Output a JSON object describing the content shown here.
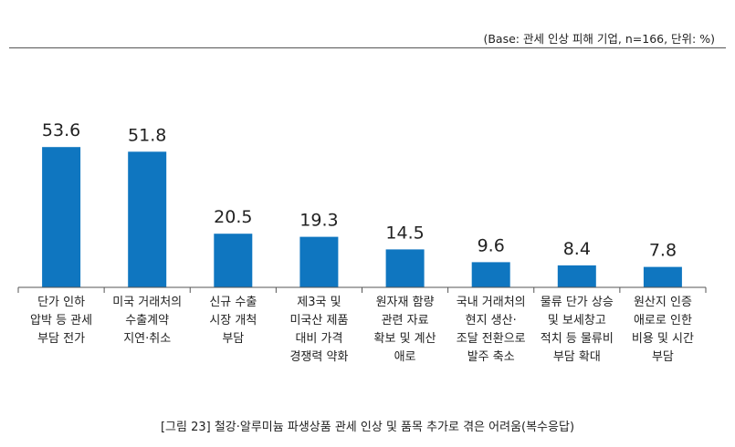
{
  "base_note": "(Base: 관세 인상 피해 기업, n=166, 단위: %)",
  "caption": "[그림 23] 철강·알루미늄 파생상품 관세 인상 및 품목 추가로 겪은 어려움(복수응답)",
  "colors": {
    "bar": "#0f76c0",
    "axis": "#555555",
    "text": "#222222"
  },
  "chart_data": {
    "type": "bar",
    "title": "",
    "xlabel": "",
    "ylabel": "",
    "ylim": [
      0,
      60
    ],
    "grid": false,
    "categories": [
      [
        "단가 인하",
        "압박 등 관세",
        "부담 전가"
      ],
      [
        "미국 거래처의",
        "수출계약",
        "지연·취소"
      ],
      [
        "신규 수출",
        "시장 개척",
        "부담"
      ],
      [
        "제3국 및",
        "미국산 제품",
        "대비 가격",
        "경쟁력 약화"
      ],
      [
        "원자재 함량",
        "관련 자료",
        "확보 및 계산",
        "애로"
      ],
      [
        "국내 거래처의",
        "현지 생산·",
        "조달 전환으로",
        "발주 축소"
      ],
      [
        "물류 단가 상승",
        "및 보세창고",
        "적치 등 물류비",
        "부담 확대"
      ],
      [
        "원산지 인증",
        "애로로 인한",
        "비용 및 시간",
        "부담"
      ]
    ],
    "values": [
      53.6,
      51.8,
      20.5,
      19.3,
      14.5,
      9.6,
      8.4,
      7.8
    ],
    "data_labels": [
      "53.6",
      "51.8",
      "20.5",
      "19.3",
      "14.5",
      "9.6",
      "8.4",
      "7.8"
    ]
  }
}
